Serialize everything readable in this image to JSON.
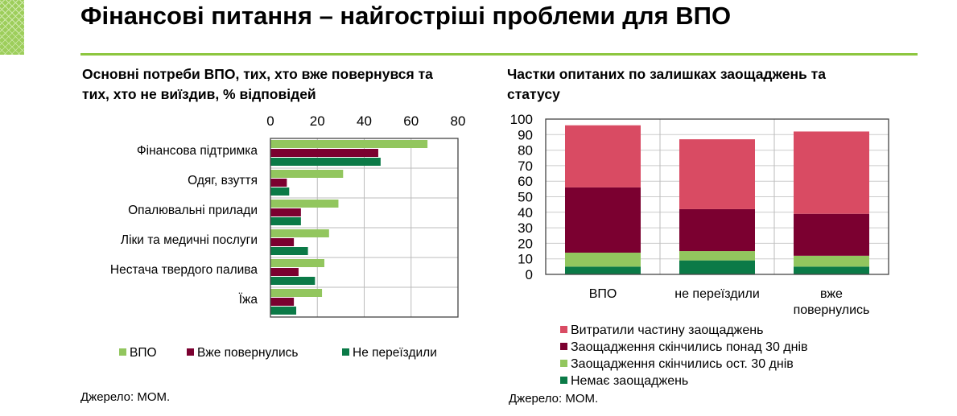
{
  "title": "Фінансові питання – найгостріші проблеми для ВПО",
  "colors": {
    "vpo": "#92c65e",
    "returned": "#7b0030",
    "stayed": "#0b7a47",
    "spent_part": "#d94b63",
    "accent": "#8dc63f"
  },
  "chart_data": [
    {
      "type": "bar",
      "orientation": "horizontal",
      "title_lines": [
        "Основні потреби ВПО, тих, хто вже повернувся та",
        "тих, хто не виїздив, % відповідей"
      ],
      "categories": [
        "Фінансова підтримка",
        "Одяг, взуття",
        "Опалювальні прилади",
        "Ліки та медичні послуги",
        "Нестача твердого палива",
        "Їжа"
      ],
      "xlim": [
        0,
        80
      ],
      "xticks": [
        "0",
        "20",
        "40",
        "60",
        "80"
      ],
      "grid": true,
      "legend": "bottom",
      "series": [
        {
          "name": "ВПО",
          "values": [
            67,
            31,
            29,
            25,
            23,
            22
          ]
        },
        {
          "name": "Вже повернулись",
          "values": [
            46,
            7,
            13,
            10,
            12,
            10
          ]
        },
        {
          "name": "Не переїздили",
          "values": [
            47,
            8,
            13,
            16,
            19,
            11
          ]
        }
      ],
      "source": "Джерело: МОМ."
    },
    {
      "type": "bar",
      "stacked": true,
      "title_lines": [
        "Частки опитаних по залишках заощаджень та",
        "статусу"
      ],
      "categories": [
        [
          "ВПО"
        ],
        [
          "не переїздили"
        ],
        [
          "вже",
          "повернулись"
        ]
      ],
      "ylim": [
        0,
        100
      ],
      "yticks": [
        "0",
        "10",
        "20",
        "30",
        "40",
        "50",
        "60",
        "70",
        "80",
        "90",
        "100"
      ],
      "grid": true,
      "legend": "bottom",
      "series": [
        {
          "name": "Немає заощаджень",
          "values": [
            5,
            9,
            5
          ]
        },
        {
          "name": "Заощадження скінчились ост. 30 днів",
          "values": [
            9,
            6,
            7
          ]
        },
        {
          "name": "Заощадження скінчились понад 30 днів",
          "values": [
            42,
            27,
            27
          ]
        },
        {
          "name": "Витратили частину заощаджень",
          "values": [
            40,
            45,
            53
          ]
        }
      ],
      "source": "Джерело: МОМ."
    }
  ]
}
